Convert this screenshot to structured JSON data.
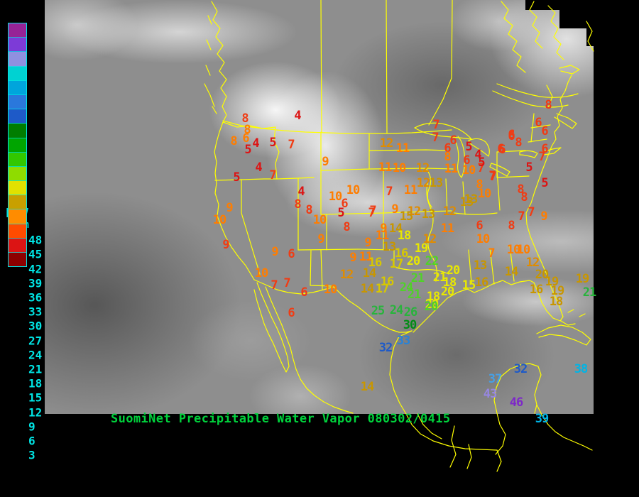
{
  "title": {
    "text": "SuomiNet Precipitable Water Vapor 080302/0415",
    "color": "#00d23c"
  },
  "legend": {
    "title": "PWV",
    "unit": "mm",
    "labels": [
      "48",
      "45",
      "42",
      "39",
      "36",
      "33",
      "30",
      "27",
      "24",
      "21",
      "18",
      "15",
      "12",
      "9",
      "6",
      "3"
    ],
    "colors_top_to_bottom": [
      "#962396",
      "#7d3bd7",
      "#9090e0",
      "#00d2d2",
      "#00a5dc",
      "#2a78dc",
      "#1e5ac8",
      "#007d00",
      "#00a500",
      "#32c800",
      "#8fdc00",
      "#e1e100",
      "#c8a000",
      "#ff8c00",
      "#ff4b00",
      "#dc1414",
      "#8c0000"
    ],
    "outline_color": "#00e5e5"
  },
  "map": {
    "outline_color": "#ffff00",
    "background": "#000000"
  },
  "palette": {
    "b3": "#dc1414",
    "b6": "#f03c14",
    "b9": "#ff7d00",
    "b12": "#e08c00",
    "b13": "#c89600",
    "b16": "#d7c800",
    "b18": "#e8e800",
    "b21": "#50d228",
    "b24": "#28b43c",
    "b27": "#008c14",
    "b30": "#1e5ac8",
    "b33": "#2882d7",
    "b37": "#46a0e6",
    "b38": "#00b4e6",
    "b42": "#9687e1",
    "b45": "#7d28c8"
  },
  "stations": [
    [
      "4",
      419,
      163,
      "b3"
    ],
    [
      "8",
      345,
      167,
      "b6"
    ],
    [
      "8",
      348,
      183,
      "b9"
    ],
    [
      "6",
      346,
      195,
      "b9"
    ],
    [
      "8",
      329,
      199,
      "b9"
    ],
    [
      "4",
      360,
      202,
      "b3"
    ],
    [
      "5",
      384,
      201,
      "b3"
    ],
    [
      "7",
      410,
      204,
      "b6"
    ],
    [
      "5",
      349,
      211,
      "b3"
    ],
    [
      "4",
      364,
      236,
      "b3"
    ],
    [
      "5",
      333,
      250,
      "b3"
    ],
    [
      "7",
      384,
      247,
      "b6"
    ],
    [
      "9",
      458,
      228,
      "b9"
    ],
    [
      "4",
      424,
      270,
      "b3"
    ],
    [
      "10",
      497,
      268,
      "b9"
    ],
    [
      "10",
      472,
      277,
      "b9"
    ],
    [
      "7",
      614,
      176,
      "b6"
    ],
    [
      "7",
      613,
      194,
      "b6"
    ],
    [
      "12",
      544,
      202,
      "b12"
    ],
    [
      "11",
      567,
      209,
      "b9"
    ],
    [
      "11",
      542,
      236,
      "b9"
    ],
    [
      "10",
      562,
      237,
      "b9"
    ],
    [
      "12",
      595,
      237,
      "b12"
    ],
    [
      "11",
      635,
      238,
      "b9"
    ],
    [
      "10",
      660,
      240,
      "b9"
    ],
    [
      "7",
      677,
      237,
      "b6"
    ],
    [
      "12",
      596,
      258,
      "b12"
    ],
    [
      "13",
      614,
      258,
      "b13"
    ],
    [
      "11",
      578,
      268,
      "b9"
    ],
    [
      "7",
      548,
      270,
      "b6"
    ],
    [
      "7",
      694,
      249,
      "b6"
    ],
    [
      "6",
      638,
      198,
      "b6"
    ],
    [
      "6",
      630,
      209,
      "b6"
    ],
    [
      "5",
      660,
      207,
      "b3"
    ],
    [
      "8",
      630,
      221,
      "b9"
    ],
    [
      "4",
      673,
      218,
      "b3"
    ],
    [
      "6",
      657,
      226,
      "b6"
    ],
    [
      "5",
      678,
      229,
      "b3"
    ],
    [
      "6",
      720,
      190,
      "b6"
    ],
    [
      "6",
      705,
      210,
      "b6"
    ],
    [
      "8",
      675,
      260,
      "b9"
    ],
    [
      "10",
      682,
      273,
      "b9"
    ],
    [
      "13",
      663,
      281,
      "b13"
    ],
    [
      "8",
      772,
      148,
      "b6"
    ],
    [
      "6",
      758,
      173,
      "b6"
    ],
    [
      "6",
      767,
      185,
      "b6"
    ],
    [
      "6",
      720,
      192,
      "b6"
    ],
    [
      "8",
      730,
      201,
      "b6"
    ],
    [
      "6",
      707,
      211,
      "b6"
    ],
    [
      "6",
      767,
      210,
      "b6"
    ],
    [
      "7",
      763,
      221,
      "b6"
    ],
    [
      "5",
      745,
      236,
      "b3"
    ],
    [
      "5",
      767,
      258,
      "b3"
    ],
    [
      "7",
      693,
      248,
      "b6"
    ],
    [
      "8",
      733,
      267,
      "b6"
    ],
    [
      "8",
      738,
      278,
      "b6"
    ],
    [
      "7",
      748,
      299,
      "b6"
    ],
    [
      "7",
      734,
      305,
      "b6"
    ],
    [
      "9",
      766,
      305,
      "b9"
    ],
    [
      "6",
      675,
      318,
      "b6"
    ],
    [
      "8",
      720,
      318,
      "b6"
    ],
    [
      "10",
      680,
      337,
      "b9"
    ],
    [
      "7",
      692,
      357,
      "b9"
    ],
    [
      "10",
      723,
      352,
      "b9"
    ],
    [
      "10",
      737,
      352,
      "b9"
    ],
    [
      "13",
      676,
      374,
      "b13"
    ],
    [
      "12",
      750,
      370,
      "b12"
    ],
    [
      "14",
      720,
      383,
      "b13"
    ],
    [
      "20",
      763,
      387,
      "b13"
    ],
    [
      "19",
      777,
      397,
      "b13"
    ],
    [
      "19",
      820,
      393,
      "b13"
    ],
    [
      "16",
      755,
      408,
      "b13"
    ],
    [
      "19",
      785,
      410,
      "b13"
    ],
    [
      "18",
      783,
      425,
      "b13"
    ],
    [
      "21",
      830,
      412,
      "b24"
    ],
    [
      "20",
      638,
      381,
      "b18"
    ],
    [
      "21",
      619,
      391,
      "b18"
    ],
    [
      "18",
      633,
      398,
      "b18"
    ],
    [
      "15",
      660,
      402,
      "b18"
    ],
    [
      "16",
      678,
      398,
      "b13"
    ],
    [
      "18",
      610,
      418,
      "b18"
    ],
    [
      "20",
      608,
      429,
      "b18"
    ],
    [
      "20",
      630,
      411,
      "b18"
    ],
    [
      "9",
      323,
      293,
      "b9"
    ],
    [
      "10",
      309,
      310,
      "b9"
    ],
    [
      "9",
      318,
      345,
      "b6"
    ],
    [
      "9",
      387,
      355,
      "b9"
    ],
    [
      "6",
      410,
      358,
      "b6"
    ],
    [
      "10",
      368,
      385,
      "b9"
    ],
    [
      "7",
      386,
      402,
      "b6"
    ],
    [
      "7",
      404,
      399,
      "b6"
    ],
    [
      "6",
      428,
      412,
      "b6"
    ],
    [
      "10",
      465,
      408,
      "b9"
    ],
    [
      "6",
      410,
      441,
      "b6"
    ],
    [
      "8",
      419,
      288,
      "b6"
    ],
    [
      "8",
      435,
      296,
      "b6"
    ],
    [
      "10",
      450,
      310,
      "b9"
    ],
    [
      "6",
      485,
      287,
      "b6"
    ],
    [
      "5",
      480,
      300,
      "b3"
    ],
    [
      "8",
      488,
      320,
      "b6"
    ],
    [
      "9",
      452,
      337,
      "b9"
    ],
    [
      "7",
      525,
      297,
      "b6"
    ],
    [
      "9",
      556,
      295,
      "b9"
    ],
    [
      "7",
      523,
      300,
      "b6"
    ],
    [
      "12",
      583,
      298,
      "b12"
    ],
    [
      "13",
      603,
      302,
      "b13"
    ],
    [
      "12",
      633,
      298,
      "b12"
    ],
    [
      "13",
      657,
      285,
      "b13"
    ],
    [
      "15",
      572,
      305,
      "b13"
    ],
    [
      "9",
      540,
      322,
      "b9"
    ],
    [
      "14",
      557,
      322,
      "b13"
    ],
    [
      "11",
      538,
      332,
      "b9"
    ],
    [
      "18",
      569,
      332,
      "b18"
    ],
    [
      "11",
      630,
      322,
      "b9"
    ],
    [
      "12",
      605,
      337,
      "b12"
    ],
    [
      "9",
      518,
      342,
      "b9"
    ],
    [
      "13",
      548,
      348,
      "b13"
    ],
    [
      "16",
      565,
      357,
      "b16"
    ],
    [
      "19",
      593,
      350,
      "b18"
    ],
    [
      "9",
      497,
      363,
      "b9"
    ],
    [
      "11",
      515,
      362,
      "b9"
    ],
    [
      "16",
      528,
      370,
      "b16"
    ],
    [
      "17",
      558,
      372,
      "b16"
    ],
    [
      "20",
      582,
      368,
      "b18"
    ],
    [
      "22",
      608,
      368,
      "b21"
    ],
    [
      "12",
      488,
      387,
      "b12"
    ],
    [
      "14",
      520,
      385,
      "b13"
    ],
    [
      "16",
      545,
      397,
      "b16"
    ],
    [
      "21",
      588,
      392,
      "b21"
    ],
    [
      "14",
      517,
      407,
      "b13"
    ],
    [
      "17",
      538,
      407,
      "b16"
    ],
    [
      "24",
      572,
      405,
      "b21"
    ],
    [
      "21",
      583,
      415,
      "b21"
    ],
    [
      "25",
      532,
      438,
      "b24"
    ],
    [
      "24",
      558,
      437,
      "b24"
    ],
    [
      "26",
      578,
      440,
      "b24"
    ],
    [
      "20",
      607,
      432,
      "b21"
    ],
    [
      "30",
      577,
      458,
      "b27"
    ],
    [
      "33",
      568,
      480,
      "b33"
    ],
    [
      "32",
      543,
      490,
      "b30"
    ],
    [
      "14",
      517,
      545,
      "b13"
    ],
    [
      "37",
      697,
      534,
      "b37"
    ],
    [
      "32",
      733,
      520,
      "b30"
    ],
    [
      "38",
      818,
      520,
      "b38"
    ],
    [
      "43",
      690,
      555,
      "b42"
    ],
    [
      "46",
      727,
      567,
      "b45"
    ],
    [
      "39",
      763,
      590,
      "b38"
    ]
  ]
}
